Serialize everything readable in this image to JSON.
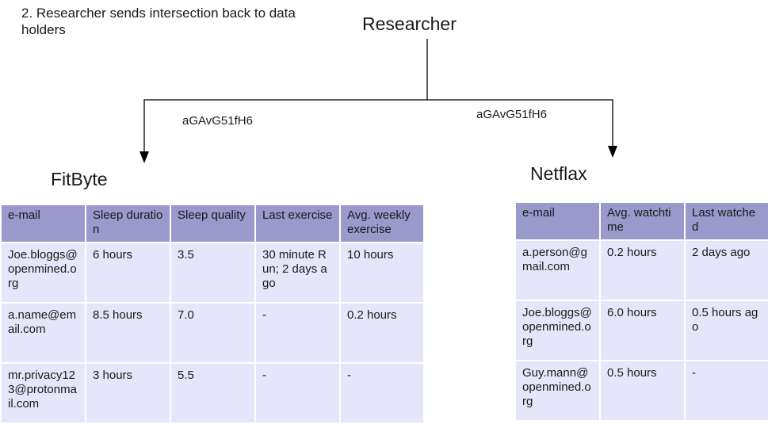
{
  "step_caption": "2. Researcher sends intersection back to data holders",
  "researcher": "Researcher",
  "tokens": {
    "left": "aGAvG51fH6",
    "right": "aGAvG51fH6"
  },
  "fitbyte": {
    "title": "FitByte",
    "headers": [
      "e-mail",
      "Sleep duration",
      "Sleep quality",
      "Last exercise",
      "Avg. weekly exercise"
    ],
    "rows": [
      [
        "Joe.bloggs@openmined.org",
        "6 hours",
        "3.5",
        "30 minute Run; 2 days ago",
        "10 hours"
      ],
      [
        "a.name@email.com",
        "8.5 hours",
        "7.0",
        "-",
        "0.2 hours"
      ],
      [
        "mr.privacy123@protonmail.com",
        "3 hours",
        "5.5",
        "-",
        "-"
      ]
    ]
  },
  "netflax": {
    "title": "Netflax",
    "headers": [
      "e-mail",
      "Avg. watchtime",
      "Last watched"
    ],
    "rows": [
      [
        "a.person@gmail.com",
        "0.2 hours",
        "2 days ago"
      ],
      [
        "Joe.bloggs@openmined.org",
        "6.0 hours",
        "0.5 hours ago"
      ],
      [
        "Guy.mann@openmined.org",
        "0.5 hours",
        "-"
      ]
    ]
  },
  "colors": {
    "header_bg": "#9999cc",
    "cell_bg": "#e6e6fa",
    "line": "#000000"
  }
}
